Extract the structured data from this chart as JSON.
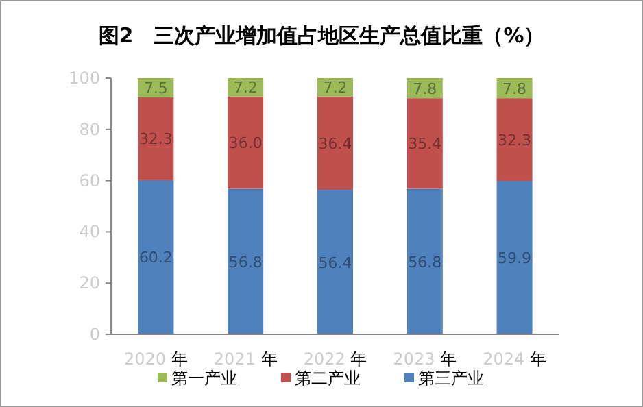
{
  "chart_data": {
    "type": "bar",
    "stacked": true,
    "title": "图2　三次产业增加值占地区生产总值比重（%）",
    "categories": [
      "2020年",
      "2021年",
      "2022年",
      "2023年",
      "2024年"
    ],
    "series": [
      {
        "name": "第三产业",
        "color": "#4f81bd",
        "values": [
          60.2,
          56.8,
          56.4,
          56.8,
          59.9
        ]
      },
      {
        "name": "第二产业",
        "color": "#c0504d",
        "values": [
          32.3,
          36.0,
          36.4,
          35.4,
          32.3
        ],
        "value_labels": [
          "32.3",
          "36.0",
          "36.4",
          "35.4",
          "32.3"
        ]
      },
      {
        "name": "第一产业",
        "color": "#9bbb59",
        "values": [
          7.5,
          7.2,
          7.2,
          7.8,
          7.8
        ]
      }
    ],
    "ylim": [
      0,
      100
    ],
    "yticks": [
      0,
      20,
      40,
      60,
      80,
      100
    ],
    "data_labels": true,
    "legend": "bottom",
    "grid": false
  }
}
